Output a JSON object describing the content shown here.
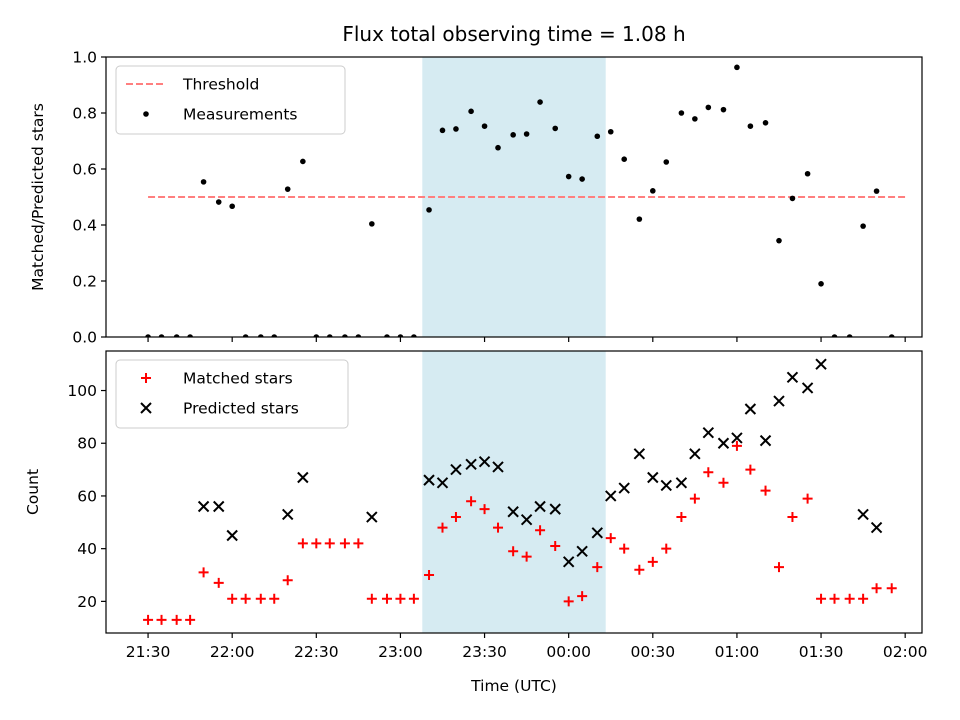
{
  "chart_data": [
    {
      "type": "scatter",
      "title": "Flux total observing time = 1.08 h",
      "ylabel": "Matched/Predicted stars",
      "xlabel": "",
      "x_unit": "time (UTC, hours after 00:00 of the first night)",
      "xlim": [
        21.25,
        26.1
      ],
      "ylim": [
        0,
        1.0
      ],
      "yticks": [
        0.0,
        0.2,
        0.4,
        0.6,
        0.8,
        1.0
      ],
      "ytick_labels": [
        "0.0",
        "0.2",
        "0.4",
        "0.6",
        "0.8",
        "1.0"
      ],
      "legend_position": "top-left",
      "highlight_span": [
        23.13,
        24.22
      ],
      "highlight_color": "#add8e6",
      "threshold": {
        "name": "Threshold",
        "value": 0.5,
        "x_range": [
          21.5,
          26.0
        ],
        "color": "#ff7f7f",
        "style": "dashed"
      },
      "series": [
        {
          "name": "Measurements",
          "color": "#000000",
          "marker": "dot",
          "x": [
            21.5,
            21.58,
            21.67,
            21.75,
            21.83,
            21.92,
            22.0,
            22.08,
            22.17,
            22.25,
            22.33,
            22.42,
            22.5,
            22.58,
            22.67,
            22.75,
            22.83,
            22.92,
            23.0,
            23.08,
            23.17,
            23.25,
            23.33,
            23.42,
            23.5,
            23.58,
            23.67,
            23.75,
            23.83,
            23.92,
            24.0,
            24.08,
            24.17,
            24.25,
            24.33,
            24.42,
            24.5,
            24.58,
            24.67,
            24.75,
            24.83,
            24.92,
            25.0,
            25.08,
            25.17,
            25.25,
            25.33,
            25.42,
            25.5,
            25.58,
            25.67,
            25.75,
            25.83,
            25.92
          ],
          "y": [
            0.0,
            0.0,
            0.0,
            0.0,
            0.554,
            0.482,
            0.467,
            0.0,
            0.0,
            0.0,
            0.528,
            0.627,
            0.0,
            0.0,
            0.0,
            0.0,
            0.404,
            0.0,
            0.0,
            0.0,
            0.454,
            0.738,
            0.743,
            0.806,
            0.753,
            0.676,
            0.722,
            0.725,
            0.839,
            0.745,
            0.573,
            0.564,
            0.717,
            0.733,
            0.635,
            0.421,
            0.522,
            0.625,
            0.8,
            0.779,
            0.82,
            0.812,
            0.963,
            0.753,
            0.765,
            0.344,
            0.495,
            0.583,
            0.19,
            0.0,
            0.0,
            0.396,
            0.521,
            0.0
          ]
        }
      ]
    },
    {
      "type": "scatter",
      "title": "",
      "xlabel": "Time (UTC)",
      "ylabel": "Count",
      "xlim": [
        21.25,
        26.1
      ],
      "ylim": [
        8,
        115
      ],
      "xticks": [
        21.5,
        22.0,
        22.5,
        23.0,
        23.5,
        24.0,
        24.5,
        25.0,
        25.5,
        26.0
      ],
      "xtick_labels": [
        "21:30",
        "22:00",
        "22:30",
        "23:00",
        "23:30",
        "00:00",
        "00:30",
        "01:00",
        "01:30",
        "02:00"
      ],
      "yticks": [
        20,
        40,
        60,
        80,
        100
      ],
      "ytick_labels": [
        "20",
        "40",
        "60",
        "80",
        "100"
      ],
      "legend_position": "top-left",
      "highlight_span": [
        23.13,
        24.22
      ],
      "highlight_color": "#add8e6",
      "series": [
        {
          "name": "Matched stars",
          "color": "#ff0000",
          "marker": "plus",
          "x": [
            21.5,
            21.58,
            21.67,
            21.75,
            21.83,
            21.92,
            22.0,
            22.08,
            22.17,
            22.25,
            22.33,
            22.42,
            22.5,
            22.58,
            22.67,
            22.75,
            22.83,
            22.92,
            23.0,
            23.08,
            23.17,
            23.25,
            23.33,
            23.42,
            23.5,
            23.58,
            23.67,
            23.75,
            23.83,
            23.92,
            24.0,
            24.08,
            24.17,
            24.25,
            24.33,
            24.42,
            24.5,
            24.58,
            24.67,
            24.75,
            24.83,
            24.92,
            25.0,
            25.08,
            25.17,
            25.25,
            25.33,
            25.42,
            25.5,
            25.58,
            25.67,
            25.75,
            25.83,
            25.92
          ],
          "y": [
            13,
            13,
            13,
            13,
            31,
            27,
            21,
            21,
            21,
            21,
            28,
            42,
            42,
            42,
            42,
            42,
            21,
            21,
            21,
            21,
            30,
            48,
            52,
            58,
            55,
            48,
            39,
            37,
            47,
            41,
            20,
            22,
            33,
            44,
            40,
            32,
            35,
            40,
            52,
            59,
            69,
            65,
            79,
            70,
            62,
            33,
            52,
            59,
            21,
            21,
            21,
            21,
            25,
            25
          ]
        },
        {
          "name": "Predicted stars",
          "color": "#000000",
          "marker": "x",
          "x": [
            21.83,
            21.92,
            22.0,
            22.33,
            22.42,
            22.83,
            23.17,
            23.25,
            23.33,
            23.42,
            23.5,
            23.58,
            23.67,
            23.75,
            23.83,
            23.92,
            24.0,
            24.08,
            24.17,
            24.25,
            24.33,
            24.42,
            24.5,
            24.58,
            24.67,
            24.75,
            24.83,
            24.92,
            25.0,
            25.08,
            25.17,
            25.25,
            25.33,
            25.42,
            25.5,
            25.75,
            25.83
          ],
          "y": [
            56,
            56,
            45,
            53,
            67,
            52,
            66,
            65,
            70,
            72,
            73,
            71,
            54,
            51,
            56,
            55,
            35,
            39,
            46,
            60,
            63,
            76,
            67,
            64,
            65,
            76,
            84,
            80,
            82,
            93,
            81,
            96,
            105,
            101,
            110,
            53,
            48
          ]
        }
      ]
    }
  ]
}
